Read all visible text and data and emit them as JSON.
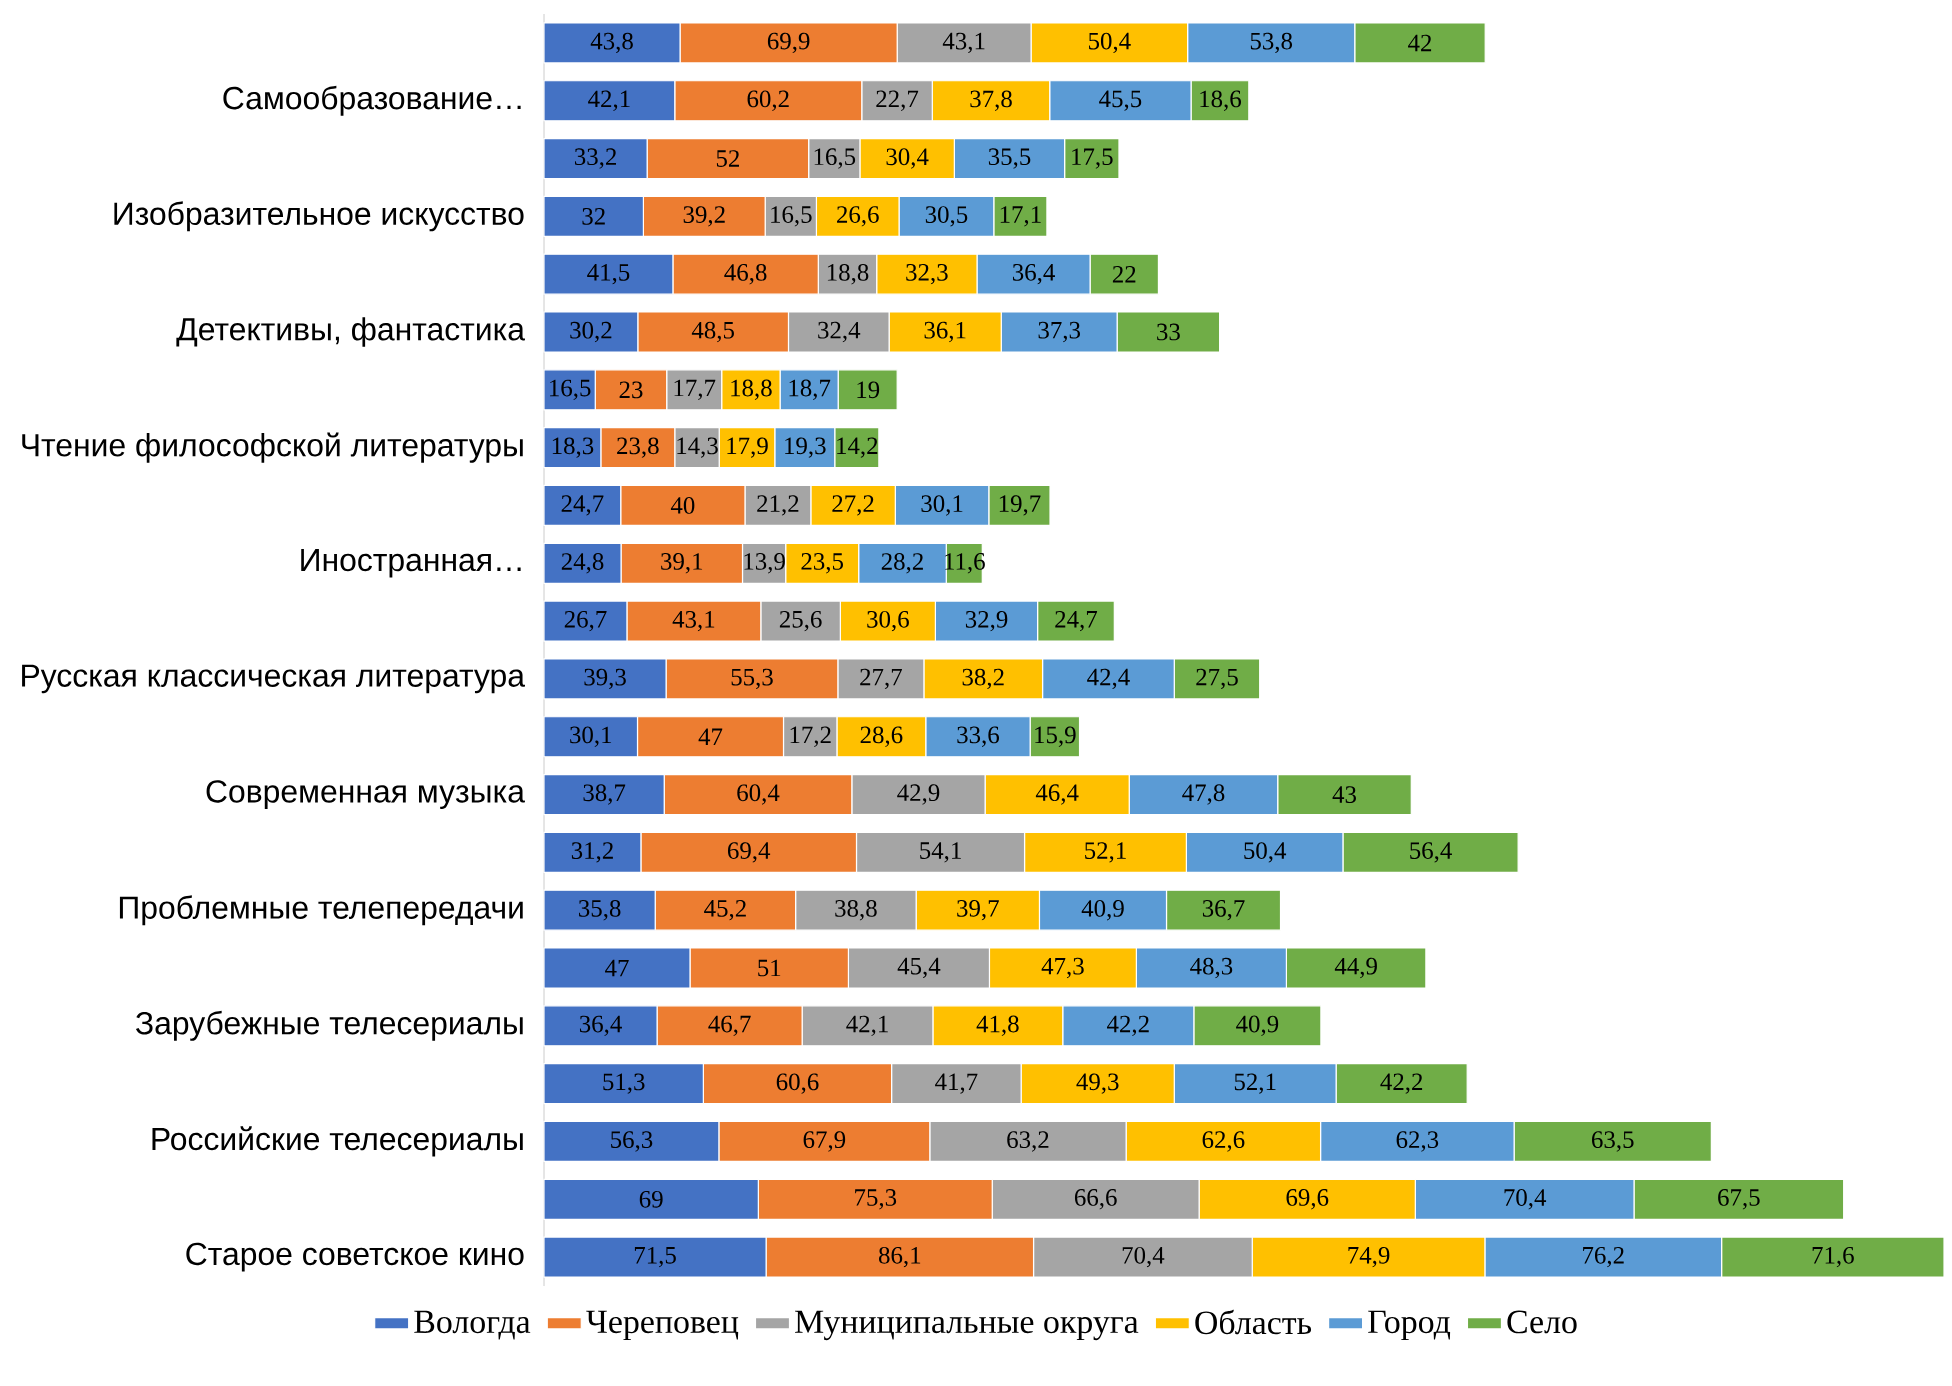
{
  "chart_data": {
    "type": "bar",
    "orientation": "horizontal",
    "stacked": true,
    "legend": "bottom",
    "categories": [
      null,
      "Самообразование…",
      null,
      "Изобразительное искусство",
      null,
      "Детективы, фантастика",
      null,
      "Чтение философской литературы",
      null,
      "Иностранная…",
      null,
      "Русская классическая литература",
      null,
      "Современная музыка",
      null,
      "Проблемные телепередачи",
      null,
      "Зарубежные телесериалы",
      null,
      "Российские телесериалы",
      null,
      "Старое советское кино"
    ],
    "series": [
      {
        "name": "Вологда",
        "color": "#4472c4",
        "values": [
          43.8,
          42.1,
          33.2,
          32,
          41.5,
          30.2,
          16.5,
          18.3,
          24.7,
          24.8,
          26.7,
          39.3,
          30.1,
          38.7,
          31.2,
          35.8,
          47,
          36.4,
          51.3,
          56.3,
          69,
          71.5
        ],
        "value_labels": [
          "43,8",
          "42,1",
          "33,2",
          "32",
          "41,5",
          "30,2",
          "16,5",
          "18,3",
          "24,7",
          "24,8",
          "26,7",
          "39,3",
          "30,1",
          "38,7",
          "31,2",
          "35,8",
          "47",
          "36,4",
          "51,3",
          "56,3",
          "69",
          "71,5"
        ]
      },
      {
        "name": "Череповец",
        "color": "#ed7d31",
        "values": [
          69.9,
          60.2,
          52,
          39.2,
          46.8,
          48.5,
          23,
          23.8,
          40,
          39.1,
          43.1,
          55.3,
          47,
          60.4,
          69.4,
          45.2,
          51,
          46.7,
          60.6,
          67.9,
          75.3,
          86.1
        ],
        "value_labels": [
          "69,9",
          "60,2",
          "52",
          "39,2",
          "46,8",
          "48,5",
          "23",
          "23,8",
          "40",
          "39,1",
          "43,1",
          "55,3",
          "47",
          "60,4",
          "69,4",
          "45,2",
          "51",
          "46,7",
          "60,6",
          "67,9",
          "75,3",
          "86,1"
        ]
      },
      {
        "name": "Муниципальные округа",
        "color": "#a5a5a5",
        "values": [
          43.1,
          22.7,
          16.5,
          16.5,
          18.8,
          32.4,
          17.7,
          14.3,
          21.2,
          13.9,
          25.6,
          27.7,
          17.2,
          42.9,
          54.1,
          38.8,
          45.4,
          42.1,
          41.7,
          63.2,
          66.6,
          70.4
        ],
        "value_labels": [
          "43,1",
          "22,7",
          "16,5",
          "16,5",
          "18,8",
          "32,4",
          "17,7",
          "14,3",
          "21,2",
          "13,9",
          "25,6",
          "27,7",
          "17,2",
          "42,9",
          "54,1",
          "38,8",
          "45,4",
          "42,1",
          "41,7",
          "63,2",
          "66,6",
          "70,4"
        ]
      },
      {
        "name": "Область",
        "color": "#ffc000",
        "values": [
          50.4,
          37.8,
          30.4,
          26.6,
          32.3,
          36.1,
          18.8,
          17.9,
          27.2,
          23.5,
          30.6,
          38.2,
          28.6,
          46.4,
          52.1,
          39.7,
          47.3,
          41.8,
          49.3,
          62.6,
          69.6,
          74.9
        ],
        "value_labels": [
          "50,4",
          "37,8",
          "30,4",
          "26,6",
          "32,3",
          "36,1",
          "18,8",
          "17,9",
          "27,2",
          "23,5",
          "30,6",
          "38,2",
          "28,6",
          "46,4",
          "52,1",
          "39,7",
          "47,3",
          "41,8",
          "49,3",
          "62,6",
          "69,6",
          "74,9"
        ]
      },
      {
        "name": "Город",
        "color": "#5b9bd5",
        "values": [
          53.8,
          45.5,
          35.5,
          30.5,
          36.4,
          37.3,
          18.7,
          19.3,
          30.1,
          28.2,
          32.9,
          42.4,
          33.6,
          47.8,
          50.4,
          40.9,
          48.3,
          42.2,
          52.1,
          62.3,
          70.4,
          76.2
        ],
        "value_labels": [
          "53,8",
          "45,5",
          "35,5",
          "30,5",
          "36,4",
          "37,3",
          "18,7",
          "19,3",
          "30,1",
          "28,2",
          "32,9",
          "42,4",
          "33,6",
          "47,8",
          "50,4",
          "40,9",
          "48,3",
          "42,2",
          "52,1",
          "62,3",
          "70,4",
          "76,2"
        ]
      },
      {
        "name": "Село",
        "color": "#70ad47",
        "values": [
          42,
          18.6,
          17.5,
          17.1,
          22,
          33,
          19,
          14.2,
          19.7,
          11.6,
          24.7,
          27.5,
          15.9,
          43,
          56.4,
          36.7,
          44.9,
          40.9,
          42.2,
          63.5,
          67.5,
          71.6
        ],
        "value_labels": [
          "42",
          "18,6",
          "17,5",
          "17,1",
          "22",
          "33",
          "19",
          "14,2",
          "19,7",
          "11,6",
          "24,7",
          "27,5",
          "15,9",
          "43",
          "56,4",
          "36,7",
          "44,9",
          "40,9",
          "42,2",
          "63,5",
          "67,5",
          "71,6"
        ]
      }
    ]
  }
}
